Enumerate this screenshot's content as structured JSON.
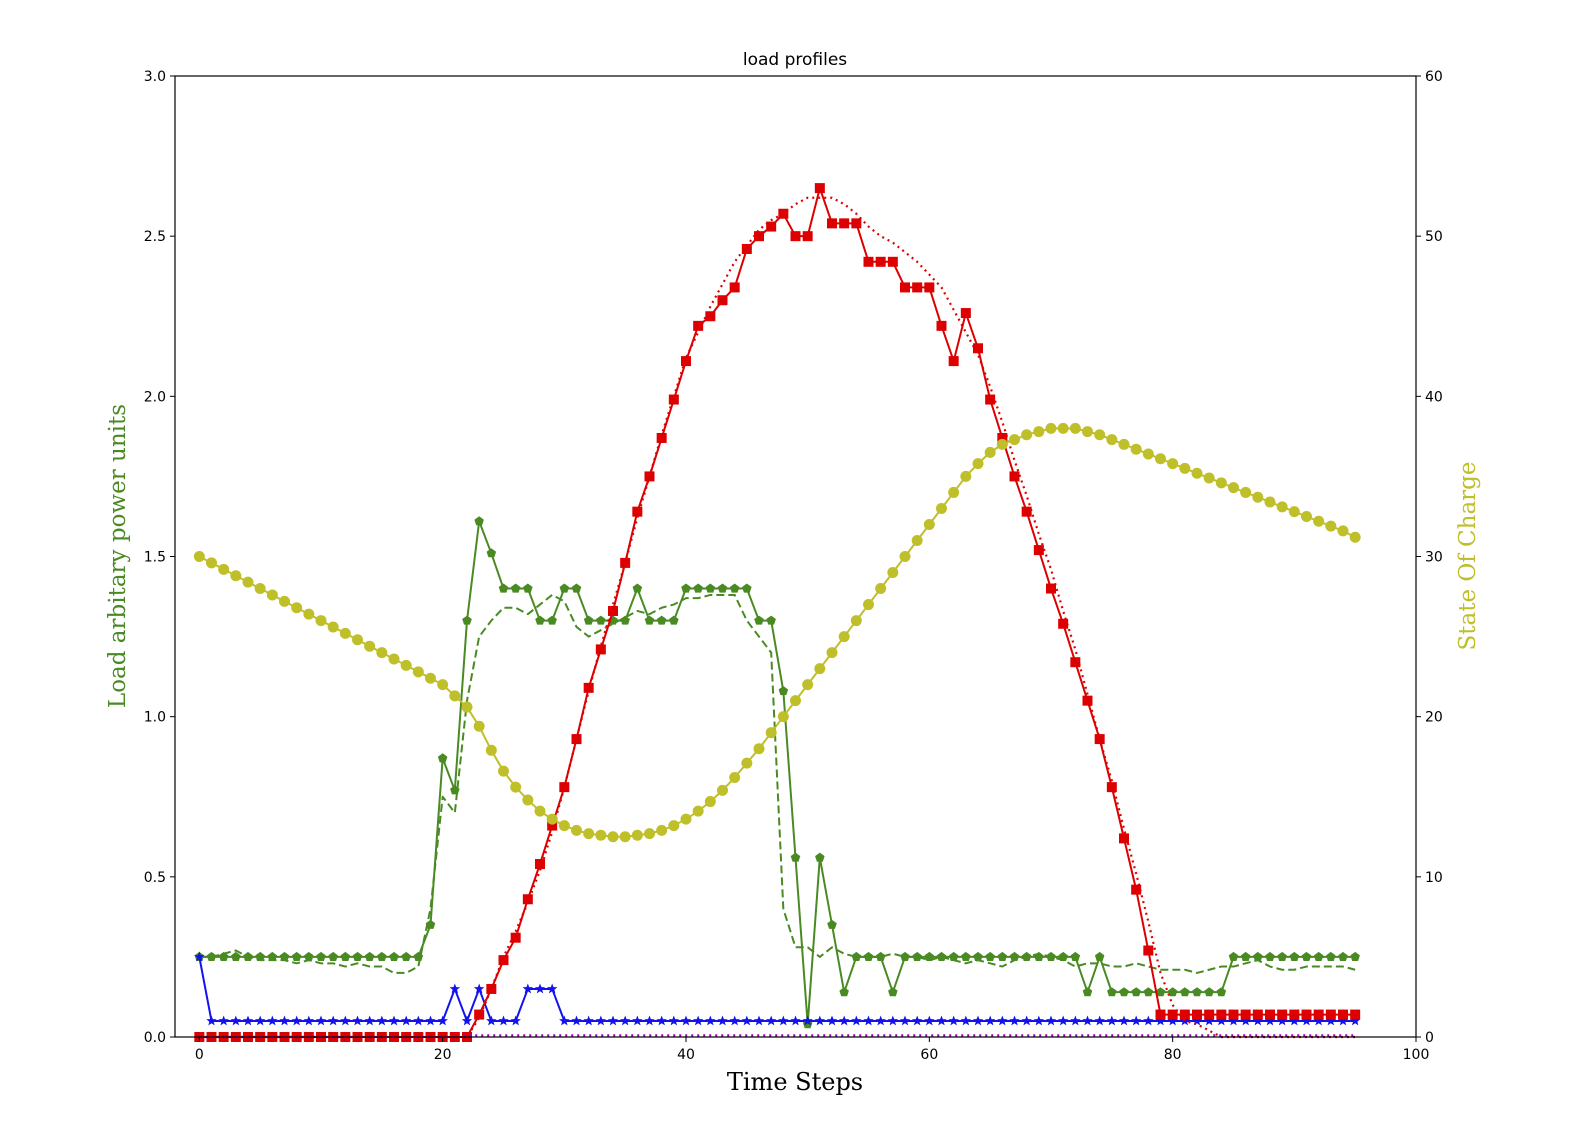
{
  "chart_data": {
    "type": "line",
    "title": "load profiles",
    "xlabel": "Time Steps",
    "ylabel_left": "Load arbitary power units",
    "ylabel_right": "State Of Charge",
    "xlim": [
      -2,
      100
    ],
    "ylim_left": [
      0,
      3.0
    ],
    "ylim_right": [
      0,
      60
    ],
    "xticks": [
      "0",
      "20",
      "40",
      "60",
      "80",
      "100"
    ],
    "yticks_left": [
      "0.0",
      "0.5",
      "1.0",
      "1.5",
      "2.0",
      "2.5",
      "3.0"
    ],
    "yticks_right": [
      "0",
      "10",
      "20",
      "30",
      "40",
      "50",
      "60"
    ],
    "grid": false,
    "colors": {
      "green": "#4a8a23",
      "blue": "#1212ee",
      "red": "#dd0000",
      "purple": "#9900cc",
      "olive": "#bfbf2a",
      "ylabel_left_color": "#4a8a23",
      "ylabel_right_color": "#bfbf2a"
    },
    "series": [
      {
        "axis": "left",
        "style": "dashed",
        "color": "green",
        "marker": "none",
        "values": [
          0.25,
          0.25,
          0.26,
          0.27,
          0.25,
          0.24,
          0.24,
          0.24,
          0.23,
          0.24,
          0.23,
          0.23,
          0.22,
          0.23,
          0.22,
          0.22,
          0.2,
          0.2,
          0.22,
          0.4,
          0.75,
          0.7,
          1.05,
          1.25,
          1.3,
          1.34,
          1.34,
          1.32,
          1.35,
          1.38,
          1.36,
          1.28,
          1.25,
          1.27,
          1.29,
          1.31,
          1.33,
          1.32,
          1.34,
          1.35,
          1.37,
          1.37,
          1.38,
          1.38,
          1.38,
          1.3,
          1.25,
          1.2,
          0.4,
          0.28,
          0.28,
          0.25,
          0.28,
          0.26,
          0.25,
          0.25,
          0.25,
          0.26,
          0.25,
          0.25,
          0.24,
          0.25,
          0.24,
          0.23,
          0.24,
          0.23,
          0.22,
          0.24,
          0.25,
          0.26,
          0.25,
          0.24,
          0.22,
          0.23,
          0.23,
          0.22,
          0.22,
          0.23,
          0.22,
          0.21,
          0.21,
          0.21,
          0.2,
          0.21,
          0.22,
          0.22,
          0.23,
          0.24,
          0.22,
          0.21,
          0.21,
          0.22,
          0.22,
          0.22,
          0.22,
          0.21
        ]
      },
      {
        "axis": "left",
        "style": "solid",
        "color": "green",
        "marker": "pentagon",
        "values": [
          0.25,
          0.25,
          0.25,
          0.25,
          0.25,
          0.25,
          0.25,
          0.25,
          0.25,
          0.25,
          0.25,
          0.25,
          0.25,
          0.25,
          0.25,
          0.25,
          0.25,
          0.25,
          0.25,
          0.35,
          0.87,
          0.77,
          1.3,
          1.61,
          1.51,
          1.4,
          1.4,
          1.4,
          1.3,
          1.3,
          1.4,
          1.4,
          1.3,
          1.3,
          1.3,
          1.3,
          1.4,
          1.3,
          1.3,
          1.3,
          1.4,
          1.4,
          1.4,
          1.4,
          1.4,
          1.4,
          1.3,
          1.3,
          1.08,
          0.56,
          0.04,
          0.56,
          0.35,
          0.14,
          0.25,
          0.25,
          0.25,
          0.14,
          0.25,
          0.25,
          0.25,
          0.25,
          0.25,
          0.25,
          0.25,
          0.25,
          0.25,
          0.25,
          0.25,
          0.25,
          0.25,
          0.25,
          0.25,
          0.14,
          0.25,
          0.14,
          0.14,
          0.14,
          0.14,
          0.14,
          0.14,
          0.14,
          0.14,
          0.14,
          0.14,
          0.25,
          0.25,
          0.25,
          0.25,
          0.25,
          0.25,
          0.25,
          0.25,
          0.25,
          0.25,
          0.25
        ]
      },
      {
        "axis": "left",
        "style": "solid",
        "color": "blue",
        "marker": "star",
        "values": [
          0.25,
          0.05,
          0.05,
          0.05,
          0.05,
          0.05,
          0.05,
          0.05,
          0.05,
          0.05,
          0.05,
          0.05,
          0.05,
          0.05,
          0.05,
          0.05,
          0.05,
          0.05,
          0.05,
          0.05,
          0.05,
          0.15,
          0.05,
          0.15,
          0.05,
          0.05,
          0.05,
          0.15,
          0.15,
          0.15,
          0.05,
          0.05,
          0.05,
          0.05,
          0.05,
          0.05,
          0.05,
          0.05,
          0.05,
          0.05,
          0.05,
          0.05,
          0.05,
          0.05,
          0.05,
          0.05,
          0.05,
          0.05,
          0.05,
          0.05,
          0.05,
          0.05,
          0.05,
          0.05,
          0.05,
          0.05,
          0.05,
          0.05,
          0.05,
          0.05,
          0.05,
          0.05,
          0.05,
          0.05,
          0.05,
          0.05,
          0.05,
          0.05,
          0.05,
          0.05,
          0.05,
          0.05,
          0.05,
          0.05,
          0.05,
          0.05,
          0.05,
          0.05,
          0.05,
          0.05,
          0.05,
          0.05,
          0.05,
          0.05,
          0.05,
          0.05,
          0.05,
          0.05,
          0.05,
          0.05,
          0.05,
          0.05,
          0.05,
          0.05,
          0.05,
          0.05
        ]
      },
      {
        "axis": "left",
        "style": "dotted",
        "color": "red",
        "marker": "none",
        "values": [
          0,
          0,
          0,
          0,
          0,
          0,
          0,
          0,
          0,
          0,
          0,
          0,
          0,
          0,
          0,
          0,
          0,
          0,
          0,
          0,
          0,
          0,
          0,
          0.06,
          0.15,
          0.25,
          0.33,
          0.42,
          0.52,
          0.64,
          0.78,
          0.93,
          1.08,
          1.22,
          1.35,
          1.48,
          1.62,
          1.75,
          1.88,
          2.0,
          2.12,
          2.2,
          2.28,
          2.35,
          2.42,
          2.47,
          2.52,
          2.55,
          2.57,
          2.6,
          2.62,
          2.62,
          2.62,
          2.6,
          2.57,
          2.53,
          2.5,
          2.48,
          2.45,
          2.42,
          2.38,
          2.34,
          2.27,
          2.2,
          2.13,
          2.03,
          1.92,
          1.8,
          1.69,
          1.57,
          1.46,
          1.33,
          1.21,
          1.07,
          0.93,
          0.8,
          0.65,
          0.51,
          0.36,
          0.2,
          0.1,
          0.05,
          0.04,
          0.02,
          0,
          0,
          0,
          0,
          0,
          0,
          0,
          0,
          0,
          0,
          0,
          0
        ]
      },
      {
        "axis": "left",
        "style": "solid",
        "color": "red",
        "marker": "square",
        "values": [
          0,
          0,
          0,
          0,
          0,
          0,
          0,
          0,
          0,
          0,
          0,
          0,
          0,
          0,
          0,
          0,
          0,
          0,
          0,
          0,
          0,
          0,
          0,
          0.07,
          0.15,
          0.24,
          0.31,
          0.43,
          0.54,
          0.66,
          0.78,
          0.93,
          1.09,
          1.21,
          1.33,
          1.48,
          1.64,
          1.75,
          1.87,
          1.99,
          2.11,
          2.22,
          2.25,
          2.3,
          2.34,
          2.46,
          2.5,
          2.53,
          2.57,
          2.5,
          2.5,
          2.65,
          2.54,
          2.54,
          2.54,
          2.42,
          2.42,
          2.42,
          2.34,
          2.34,
          2.34,
          2.22,
          2.11,
          2.26,
          2.15,
          1.99,
          1.87,
          1.75,
          1.64,
          1.52,
          1.4,
          1.29,
          1.17,
          1.05,
          0.93,
          0.78,
          0.62,
          0.46,
          0.27,
          0.07,
          0.07,
          0.07,
          0.07,
          0.07,
          0.07,
          0.07,
          0.07,
          0.07,
          0.07,
          0.07,
          0.07,
          0.07,
          0.07,
          0.07,
          0.07,
          0.07
        ]
      },
      {
        "axis": "left",
        "style": "dotted",
        "color": "purple",
        "marker": "none",
        "values": [
          0,
          0,
          0,
          0,
          0,
          0,
          0,
          0,
          0,
          0,
          0,
          0,
          0,
          0,
          0,
          0,
          0,
          0,
          0,
          0,
          0,
          0,
          0.005,
          0.005,
          0.005,
          0.005,
          0.005,
          0.005,
          0.005,
          0.005,
          0.005,
          0.005,
          0.005,
          0.005,
          0.005,
          0.005,
          0.005,
          0.005,
          0.005,
          0.005,
          0.005,
          0.005,
          0.005,
          0.005,
          0.005,
          0.005,
          0.005,
          0.005,
          0.005,
          0.005,
          0.005,
          0.005,
          0.005,
          0.005,
          0.005,
          0.005,
          0.005,
          0.005,
          0.005,
          0.005,
          0.005,
          0.005,
          0.005,
          0.005,
          0.005,
          0.005,
          0.005,
          0.005,
          0.005,
          0.005,
          0.005,
          0.005,
          0.005,
          0.005,
          0.005,
          0.005,
          0.005,
          0.005,
          0.005,
          0.005,
          0.005,
          0.005,
          0.005,
          0.005,
          0.005,
          0.005,
          0.005,
          0.005,
          0.005,
          0.005,
          0.005,
          0.005,
          0.005,
          0.005,
          0.005,
          0.005
        ]
      },
      {
        "axis": "right",
        "style": "solid",
        "color": "olive",
        "marker": "circle",
        "values": [
          30,
          29.6,
          29.2,
          28.8,
          28.4,
          28.0,
          27.6,
          27.2,
          26.8,
          26.4,
          26.0,
          25.6,
          25.2,
          24.8,
          24.4,
          24.0,
          23.6,
          23.2,
          22.8,
          22.4,
          22.0,
          21.3,
          20.6,
          19.4,
          17.9,
          16.6,
          15.6,
          14.8,
          14.1,
          13.6,
          13.2,
          12.9,
          12.7,
          12.6,
          12.5,
          12.5,
          12.6,
          12.7,
          12.9,
          13.2,
          13.6,
          14.1,
          14.7,
          15.4,
          16.2,
          17.1,
          18.0,
          19.0,
          20.0,
          21.0,
          22.0,
          23.0,
          24.0,
          25.0,
          26.0,
          27.0,
          28.0,
          29.0,
          30.0,
          31.0,
          32.0,
          33.0,
          34.0,
          35.0,
          35.8,
          36.5,
          37.0,
          37.3,
          37.6,
          37.8,
          38.0,
          38.0,
          38.0,
          37.8,
          37.6,
          37.3,
          37.0,
          36.7,
          36.4,
          36.1,
          35.8,
          35.5,
          35.2,
          34.9,
          34.6,
          34.3,
          34.0,
          33.7,
          33.4,
          33.1,
          32.8,
          32.5,
          32.2,
          31.9,
          31.6,
          31.2
        ]
      }
    ]
  }
}
